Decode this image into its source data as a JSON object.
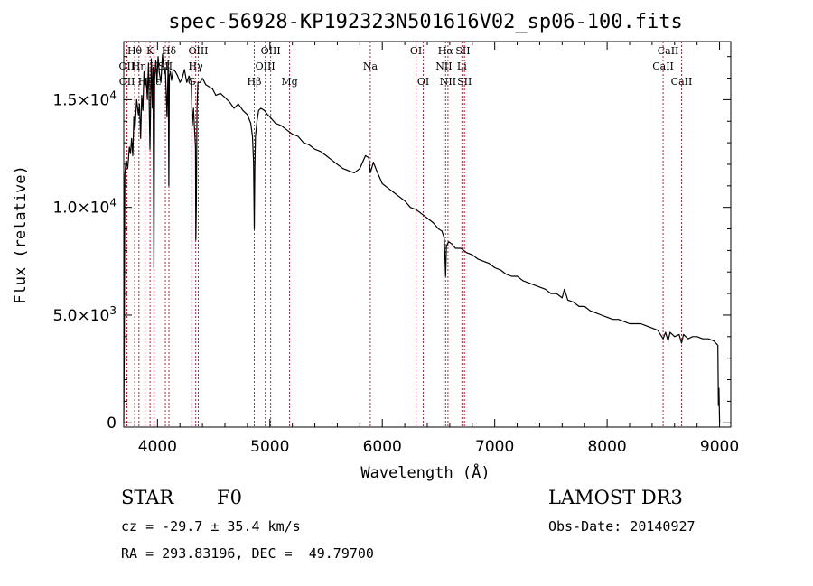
{
  "chart_data": {
    "type": "line",
    "title": "spec-56928-KP192323N501616V02_sp06-100.fits",
    "xlabel": "Wavelength (Å)",
    "ylabel": "Flux (relative)",
    "xlim": [
      3700,
      9100
    ],
    "ylim": [
      -200,
      17700
    ],
    "x_ticks": [
      {
        "value": 4000,
        "label": "4000"
      },
      {
        "value": 5000,
        "label": "5000"
      },
      {
        "value": 6000,
        "label": "6000"
      },
      {
        "value": 7000,
        "label": "7000"
      },
      {
        "value": 8000,
        "label": "8000"
      },
      {
        "value": 9000,
        "label": "9000"
      }
    ],
    "y_ticks": [
      {
        "value": 0,
        "mantissa": "0",
        "exponent": ""
      },
      {
        "value": 5000,
        "mantissa": "5.0×10",
        "exponent": "3"
      },
      {
        "value": 10000,
        "mantissa": "1.0×10",
        "exponent": "4"
      },
      {
        "value": 15000,
        "mantissa": "1.5×10",
        "exponent": "4"
      }
    ],
    "series": [
      {
        "name": "spectrum",
        "x": [
          3700,
          3705,
          3710,
          3720,
          3735,
          3750,
          3760,
          3770,
          3780,
          3790,
          3800,
          3815,
          3830,
          3840,
          3850,
          3860,
          3870,
          3880,
          3890,
          3900,
          3910,
          3920,
          3933,
          3945,
          3955,
          3960,
          3968,
          3975,
          3985,
          3995,
          4005,
          4015,
          4030,
          4045,
          4060,
          4070,
          4085,
          4095,
          4101,
          4106,
          4115,
          4125,
          4140,
          4160,
          4180,
          4200,
          4220,
          4240,
          4260,
          4280,
          4300,
          4310,
          4320,
          4330,
          4338,
          4341,
          4346,
          4352,
          4360,
          4380,
          4400,
          4430,
          4460,
          4490,
          4520,
          4560,
          4600,
          4640,
          4680,
          4720,
          4760,
          4800,
          4830,
          4845,
          4855,
          4861,
          4866,
          4872,
          4885,
          4900,
          4920,
          4950,
          4980,
          5000,
          5050,
          5100,
          5150,
          5200,
          5250,
          5300,
          5350,
          5400,
          5450,
          5500,
          5550,
          5600,
          5650,
          5700,
          5750,
          5800,
          5850,
          5880,
          5893,
          5905,
          5920,
          5950,
          6000,
          6050,
          6100,
          6150,
          6200,
          6250,
          6300,
          6350,
          6400,
          6450,
          6500,
          6530,
          6550,
          6557,
          6563,
          6570,
          6590,
          6620,
          6650,
          6700,
          6750,
          6800,
          6850,
          6900,
          6950,
          7000,
          7050,
          7100,
          7150,
          7200,
          7250,
          7300,
          7350,
          7400,
          7450,
          7500,
          7550,
          7600,
          7620,
          7650,
          7700,
          7750,
          7800,
          7850,
          7900,
          7950,
          8000,
          8050,
          8100,
          8150,
          8200,
          8250,
          8300,
          8350,
          8400,
          8450,
          8498,
          8520,
          8542,
          8560,
          8600,
          8640,
          8662,
          8680,
          8720,
          8760,
          8800,
          8850,
          8900,
          8950,
          8985,
          8990,
          8995,
          9000
        ],
        "y": [
          0,
          3600,
          11500,
          12200,
          11800,
          12800,
          12500,
          13200,
          12400,
          14200,
          13600,
          15000,
          14300,
          14800,
          13200,
          15200,
          14500,
          16300,
          15600,
          16000,
          15000,
          16700,
          12700,
          16900,
          14600,
          16500,
          7200,
          16000,
          16800,
          15800,
          17000,
          16300,
          15800,
          17100,
          16200,
          16500,
          14200,
          16800,
          11000,
          16100,
          16300,
          15900,
          16400,
          16300,
          16100,
          15800,
          16000,
          16400,
          15800,
          16100,
          15800,
          13800,
          14600,
          13600,
          12800,
          8500,
          10200,
          14600,
          15800,
          15800,
          16000,
          15700,
          15600,
          15500,
          15200,
          15300,
          15100,
          14900,
          14600,
          14800,
          14500,
          14300,
          13900,
          13300,
          12100,
          9000,
          11800,
          13300,
          14000,
          14500,
          14600,
          14500,
          14300,
          14200,
          13900,
          13800,
          13600,
          13400,
          13300,
          13000,
          12900,
          12700,
          12600,
          12400,
          12200,
          12000,
          11800,
          11700,
          11600,
          11800,
          12400,
          12300,
          11600,
          11800,
          12100,
          11700,
          11100,
          10900,
          10700,
          10500,
          10300,
          10000,
          9900,
          9700,
          9500,
          9300,
          9000,
          8900,
          8600,
          7800,
          6800,
          8200,
          8400,
          8300,
          8100,
          8100,
          7900,
          7800,
          7600,
          7500,
          7400,
          7200,
          7100,
          6900,
          6800,
          6800,
          6600,
          6500,
          6400,
          6300,
          6200,
          6000,
          6000,
          5800,
          6200,
          5700,
          5600,
          5400,
          5400,
          5200,
          5100,
          5000,
          4900,
          4800,
          4800,
          4700,
          4600,
          4600,
          4600,
          4500,
          4400,
          4300,
          3900,
          4200,
          3800,
          4200,
          4000,
          4100,
          3700,
          4100,
          3900,
          4000,
          4000,
          3900,
          3900,
          3800,
          3600,
          800,
          1600,
          0
        ]
      }
    ],
    "spectral_lines": [
      {
        "label": "Hθ",
        "wl": 3797,
        "row": 1
      },
      {
        "label": "OII",
        "wl": 3727,
        "row": 2
      },
      {
        "label": "Hη",
        "wl": 3835,
        "row": 2
      },
      {
        "label": "OII",
        "wl": 3729,
        "row": 3
      },
      {
        "label": "Hζ",
        "wl": 3889,
        "row": 3
      },
      {
        "label": "K",
        "wl": 3934,
        "row": 1
      },
      {
        "label": "H",
        "wl": 3968,
        "row": 2
      },
      {
        "label": "Hε",
        "wl": 3970,
        "row": 3
      },
      {
        "label": "Hδ",
        "wl": 4102,
        "row": 1
      },
      {
        "label": "SII",
        "wl": 4070,
        "row": 2
      },
      {
        "label": "OIII",
        "wl": 4363,
        "row": 1
      },
      {
        "label": "Hγ",
        "wl": 4340,
        "row": 2
      },
      {
        "label": "G",
        "wl": 4305,
        "row": 3
      },
      {
        "label": "OIII",
        "wl": 5007,
        "row": 1
      },
      {
        "label": "OIII",
        "wl": 4959,
        "row": 2
      },
      {
        "label": "Hβ",
        "wl": 4861,
        "row": 3
      },
      {
        "label": "Mg",
        "wl": 5175,
        "row": 3
      },
      {
        "label": "Na",
        "wl": 5893,
        "row": 2
      },
      {
        "label": "OI",
        "wl": 6300,
        "row": 1
      },
      {
        "label": "OI",
        "wl": 6364,
        "row": 3
      },
      {
        "label": "Hα",
        "wl": 6563,
        "row": 1
      },
      {
        "label": "NII",
        "wl": 6548,
        "row": 2
      },
      {
        "label": "NII",
        "wl": 6584,
        "row": 3
      },
      {
        "label": "SII",
        "wl": 6717,
        "row": 1
      },
      {
        "label": "Li",
        "wl": 6708,
        "row": 2
      },
      {
        "label": "SII",
        "wl": 6731,
        "row": 3
      },
      {
        "label": "CaII",
        "wl": 8542,
        "row": 1
      },
      {
        "label": "CaII",
        "wl": 8498,
        "row": 2
      },
      {
        "label": "CaII",
        "wl": 8662,
        "row": 3
      }
    ]
  },
  "info": {
    "object_type": "STAR",
    "subclass": "F0",
    "survey": "LAMOST DR3",
    "redshift_text": "cz = -29.7 ± 35.4 km/s",
    "coords_text": "RA = 293.83196, DEC =  49.79700",
    "obs_date_text": "Obs-Date: 20140927"
  },
  "colors": {
    "spectrum": "#000000",
    "line_markers": "#b0283c",
    "axes": "#000000"
  }
}
